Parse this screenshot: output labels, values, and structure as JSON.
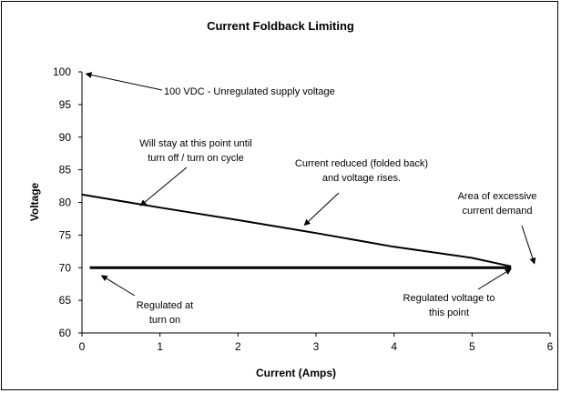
{
  "chart_data": {
    "type": "line",
    "title": "Current Foldback Limiting",
    "xlabel": "Current (Amps)",
    "ylabel": "Voltage",
    "xlim": [
      0,
      6
    ],
    "ylim": [
      60,
      100
    ],
    "x_ticks": [
      "0",
      "1",
      "2",
      "3",
      "4",
      "5",
      "6"
    ],
    "y_ticks": [
      "60",
      "65",
      "70",
      "75",
      "80",
      "85",
      "90",
      "95",
      "100"
    ],
    "grid": false,
    "legend": "none",
    "series": [
      {
        "points": [
          [
            0.1,
            70
          ],
          [
            5.5,
            70
          ]
        ],
        "color": "#000000"
      },
      {
        "points": [
          [
            0,
            81.2
          ],
          [
            1,
            79.2
          ],
          [
            2,
            77.3
          ],
          [
            3,
            75.3
          ],
          [
            4,
            73.2
          ],
          [
            5,
            71.5
          ],
          [
            5.5,
            70.2
          ]
        ],
        "color": "#000000"
      }
    ],
    "annotations": [
      {
        "id": "unregulated",
        "lines": [
          "100 VDC - Unregulated supply voltage"
        ],
        "arrow_to": [
          0.05,
          99.7
        ]
      },
      {
        "id": "stay-point",
        "lines": [
          "Will stay at this point until",
          "turn off / turn on cycle"
        ],
        "arrow_to": [
          0.75,
          79.5
        ]
      },
      {
        "id": "current-reduced",
        "lines": [
          "Current reduced (folded back)",
          "and voltage rises."
        ],
        "arrow_to": [
          2.85,
          76.5
        ]
      },
      {
        "id": "excessive-demand",
        "lines": [
          "Area of excessive",
          "current demand"
        ],
        "arrow_to": [
          5.8,
          70.6
        ]
      },
      {
        "id": "regulated-turn-on",
        "lines": [
          "Regulated at",
          "turn on"
        ],
        "arrow_to": [
          0.25,
          68.8
        ]
      },
      {
        "id": "regulated-point",
        "lines": [
          "Regulated voltage to",
          "this point"
        ],
        "arrow_to": [
          5.5,
          69.8
        ]
      }
    ]
  }
}
